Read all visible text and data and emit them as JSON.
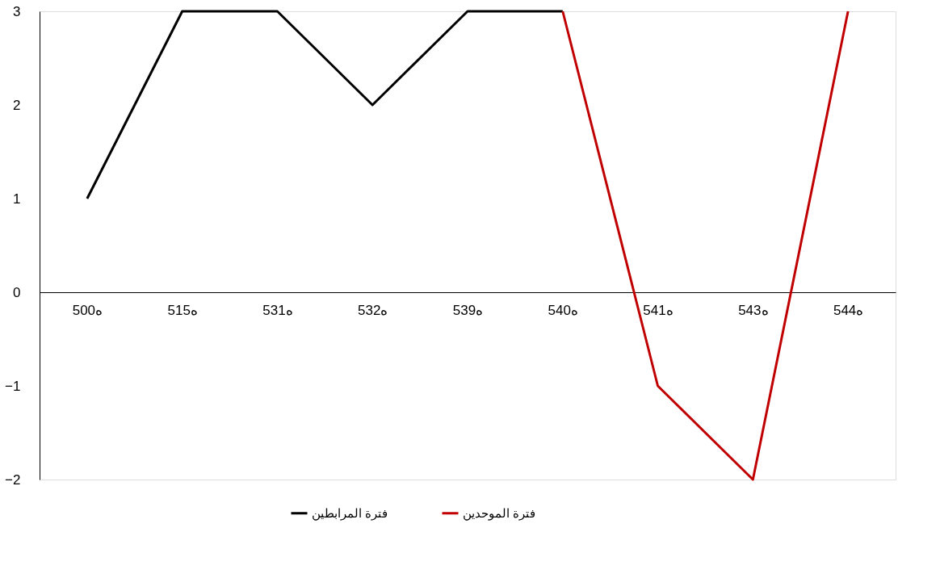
{
  "chart_data": {
    "type": "line",
    "categories": [
      "500ه",
      "515ه",
      "531ه",
      "532ه",
      "539ه",
      "540ه",
      "541ه",
      "543ه",
      "544ه"
    ],
    "series": [
      {
        "name": "فترة المرابطين",
        "color": "#000000",
        "values": [
          1,
          3,
          3,
          2,
          3,
          3,
          null,
          null,
          null
        ]
      },
      {
        "name": "فترة الموحدين",
        "color": "#c00000",
        "values": [
          null,
          null,
          null,
          null,
          null,
          3,
          -1,
          -2,
          3
        ]
      }
    ],
    "ylim": [
      -2,
      3
    ],
    "yticks": [
      -2,
      -1,
      0,
      1,
      2,
      3
    ],
    "grid": false,
    "legend": "bottom",
    "marker": "none",
    "line_style": "solid"
  }
}
